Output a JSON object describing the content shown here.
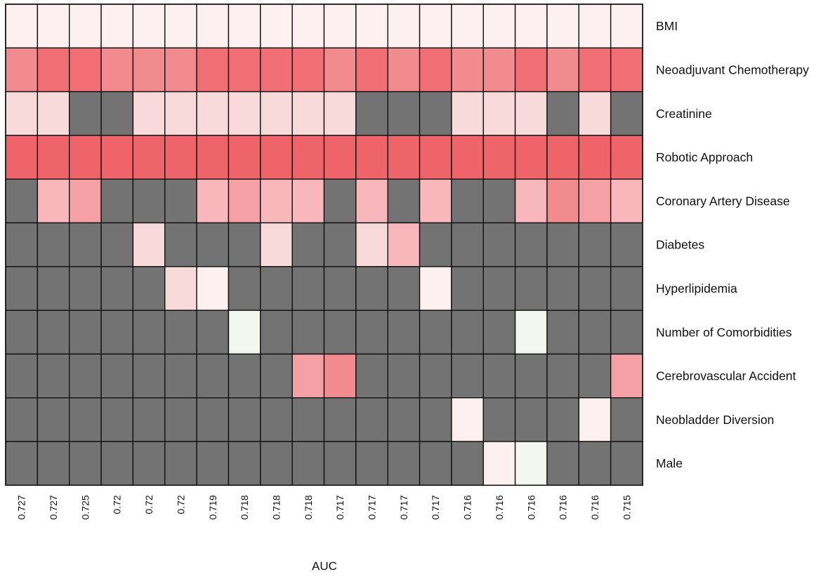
{
  "chart_data": {
    "type": "heatmap",
    "xlabel": "AUC",
    "ylabel": "",
    "x_tick_labels": [
      "0.727",
      "0.727",
      "0.725",
      "0.72",
      "0.72",
      "0.72",
      "0.719",
      "0.718",
      "0.718",
      "0.718",
      "0.717",
      "0.717",
      "0.717",
      "0.717",
      "0.716",
      "0.716",
      "0.716",
      "0.716",
      "0.716",
      "0.715"
    ],
    "rows": [
      "BMI",
      "Neoadjuvant Chemotherapy",
      "Creatinine",
      "Robotic Approach",
      "Coronary Artery Disease",
      "Diabetes",
      "Hyperlipidemia",
      "Number of Comorbidities",
      "Cerebrovascular Accident",
      "Neobladder Diversion",
      "Male"
    ],
    "missing_color": "#737373",
    "color_levels": {
      "0": "#737373",
      "1": "#fcf0f0",
      "2": "#f9dada",
      "3": "#f8b8bb",
      "4": "#f4a0a5",
      "5": "#f28b8d",
      "6": "#f06e74",
      "7": "#ef6469",
      "8": "#f3f7f0"
    },
    "cells": [
      [
        1,
        1,
        1,
        1,
        1,
        1,
        1,
        1,
        1,
        1,
        1,
        1,
        1,
        1,
        1,
        1,
        1,
        1,
        1,
        1
      ],
      [
        5,
        6,
        6,
        5,
        5,
        5,
        6,
        6,
        6,
        6,
        5,
        6,
        5,
        6,
        5,
        5,
        6,
        5,
        6,
        6
      ],
      [
        2,
        2,
        0,
        0,
        2,
        2,
        2,
        2,
        2,
        2,
        2,
        0,
        0,
        0,
        2,
        2,
        2,
        0,
        2,
        0
      ],
      [
        7,
        7,
        7,
        7,
        7,
        7,
        7,
        7,
        7,
        7,
        7,
        7,
        7,
        7,
        7,
        7,
        7,
        7,
        7,
        7
      ],
      [
        0,
        3,
        4,
        0,
        0,
        0,
        3,
        4,
        3,
        3,
        0,
        3,
        0,
        3,
        0,
        0,
        3,
        5,
        4,
        3
      ],
      [
        0,
        0,
        0,
        0,
        2,
        0,
        0,
        0,
        2,
        0,
        0,
        2,
        3,
        0,
        0,
        0,
        0,
        0,
        0,
        0
      ],
      [
        0,
        0,
        0,
        0,
        0,
        2,
        1,
        0,
        0,
        0,
        0,
        0,
        0,
        1,
        0,
        0,
        0,
        0,
        0,
        0
      ],
      [
        0,
        0,
        0,
        0,
        0,
        0,
        0,
        8,
        0,
        0,
        0,
        0,
        0,
        0,
        0,
        0,
        8,
        0,
        0,
        0
      ],
      [
        0,
        0,
        0,
        0,
        0,
        0,
        0,
        0,
        0,
        4,
        5,
        0,
        0,
        0,
        0,
        0,
        0,
        0,
        0,
        4
      ],
      [
        0,
        0,
        0,
        0,
        0,
        0,
        0,
        0,
        0,
        0,
        0,
        0,
        0,
        0,
        1,
        0,
        0,
        0,
        1,
        0
      ],
      [
        0,
        0,
        0,
        0,
        0,
        0,
        0,
        0,
        0,
        0,
        0,
        0,
        0,
        0,
        0,
        1,
        8,
        0,
        0,
        0
      ]
    ],
    "grid": true,
    "legend": "none"
  }
}
